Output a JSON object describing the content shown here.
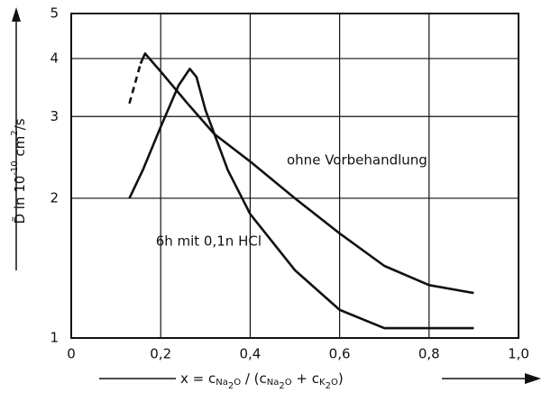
{
  "chart_data": {
    "type": "line",
    "ylabel": [
      "D̃ in 10",
      "-10",
      " cm",
      "2",
      "/s"
    ],
    "xlabel": [
      "x = c",
      "Na",
      "2",
      "O",
      " / (c",
      "Na",
      "2",
      "O",
      " + c",
      "K",
      "2",
      "O",
      ")"
    ],
    "log_y": true,
    "grid": true,
    "xlim": [
      0,
      1.0
    ],
    "ylim": [
      1,
      5
    ],
    "xticks": [
      0,
      {
        "value": 0.2,
        "label": "0,2"
      },
      {
        "value": 0.4,
        "label": "0,4"
      },
      {
        "value": 0.6,
        "label": "0,6"
      },
      {
        "value": 0.8,
        "label": "0,8"
      },
      {
        "value": 1.0,
        "label": "1,0"
      }
    ],
    "yticks": [
      1,
      2,
      3,
      4,
      5
    ],
    "series": [
      {
        "name": "ohne Vorbehandlung",
        "color": "#111111",
        "x": [
          0.155,
          0.165,
          0.2,
          0.26,
          0.32,
          0.4,
          0.5,
          0.6,
          0.7,
          0.8,
          0.9
        ],
        "values": [
          3.9,
          4.1,
          3.75,
          3.2,
          2.75,
          2.4,
          2.0,
          1.68,
          1.43,
          1.3,
          1.25
        ]
      },
      {
        "color": "#111111",
        "dashed": true,
        "x": [
          0.13,
          0.155
        ],
        "values": [
          3.2,
          3.9
        ]
      },
      {
        "name": "6h mit 0,1n HCl",
        "color": "#111111",
        "x": [
          0.13,
          0.16,
          0.2,
          0.24,
          0.265,
          0.28,
          0.3,
          0.35,
          0.4,
          0.5,
          0.6,
          0.7,
          0.8,
          0.9
        ],
        "values": [
          2.0,
          2.3,
          2.85,
          3.5,
          3.8,
          3.65,
          3.1,
          2.3,
          1.85,
          1.4,
          1.15,
          1.05,
          1.05,
          1.05
        ]
      }
    ]
  }
}
